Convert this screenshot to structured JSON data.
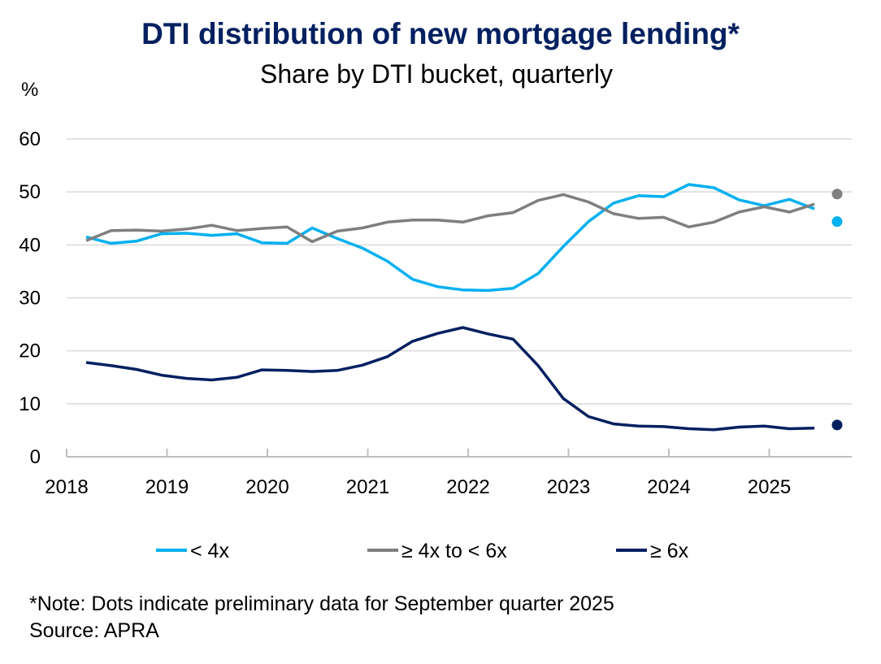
{
  "chart_data": {
    "type": "line",
    "title": "DTI distribution of new mortgage lending*",
    "subtitle": "Share by DTI bucket, quarterly",
    "ylabel": "%",
    "xlabel": "",
    "ylim": [
      0,
      60
    ],
    "yticks": [
      "0",
      "10",
      "20",
      "30",
      "40",
      "50",
      "60"
    ],
    "xticks": [
      "2018",
      "2019",
      "2020",
      "2021",
      "2022",
      "2023",
      "2024",
      "2025"
    ],
    "grid": true,
    "legend_position": "bottom",
    "x": [
      "Mar 2018",
      "Jun 2018",
      "Sep 2018",
      "Dec 2018",
      "Mar 2019",
      "Jun 2019",
      "Sep 2019",
      "Dec 2019",
      "Mar 2020",
      "Jun 2020",
      "Sep 2020",
      "Dec 2020",
      "Mar 2021",
      "Jun 2021",
      "Sep 2021",
      "Dec 2021",
      "Mar 2022",
      "Jun 2022",
      "Sep 2022",
      "Dec 2022",
      "Mar 2023",
      "Jun 2023",
      "Sep 2023",
      "Dec 2023",
      "Mar 2024",
      "Jun 2024",
      "Sep 2024",
      "Dec 2024",
      "Mar 2025",
      "Jun 2025"
    ],
    "preliminary_x": "Sep 2025",
    "series": [
      {
        "name": "< 4x",
        "color": "#00B0F0",
        "values": [
          41.5,
          40.3,
          40.7,
          42.1,
          42.2,
          41.8,
          42.1,
          40.4,
          40.3,
          43.2,
          41.2,
          39.4,
          36.9,
          33.5,
          32.1,
          31.5,
          31.4,
          31.8,
          34.6,
          39.7,
          44.4,
          47.9,
          49.3,
          49.1,
          51.4,
          50.8,
          48.5,
          47.4,
          48.6,
          46.8
        ],
        "preliminary": 44.4
      },
      {
        "name": "≥ 4x to < 6x",
        "color": "#7F7F7F",
        "values": [
          40.8,
          42.7,
          42.8,
          42.6,
          43.0,
          43.7,
          42.7,
          43.1,
          43.4,
          40.6,
          42.6,
          43.2,
          44.3,
          44.7,
          44.7,
          44.3,
          45.5,
          46.1,
          48.4,
          49.5,
          48.1,
          45.9,
          45.0,
          45.2,
          43.4,
          44.3,
          46.2,
          47.2,
          46.2,
          47.7
        ],
        "preliminary": 49.6
      },
      {
        "name": "≥ 6x",
        "color": "#002060",
        "values": [
          17.8,
          17.2,
          16.5,
          15.4,
          14.8,
          14.5,
          15.0,
          16.4,
          16.3,
          16.1,
          16.3,
          17.3,
          18.9,
          21.8,
          23.3,
          24.4,
          23.2,
          22.2,
          17.2,
          11.0,
          7.6,
          6.2,
          5.8,
          5.7,
          5.3,
          5.1,
          5.6,
          5.8,
          5.3,
          5.4
        ],
        "preliminary": 6.0
      }
    ],
    "notes": [
      "*Note: Dots indicate preliminary data for September quarter 2025",
      "Source: APRA"
    ]
  }
}
